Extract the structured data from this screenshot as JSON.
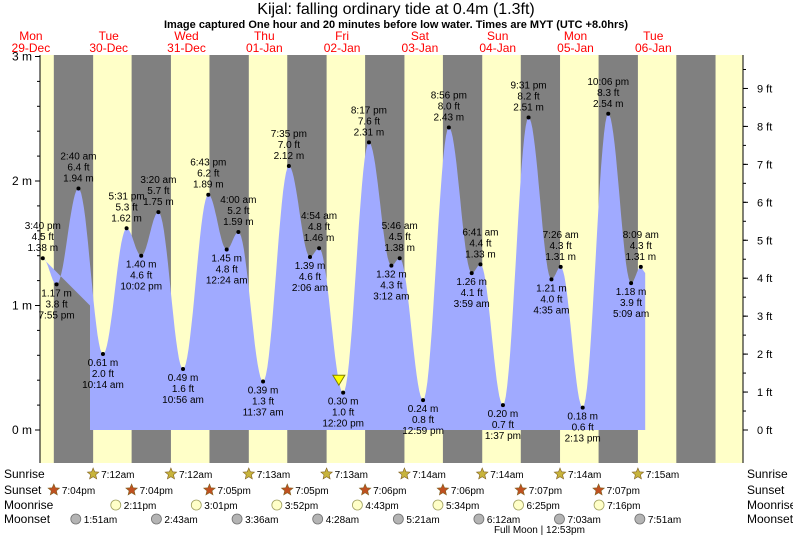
{
  "chart_data": {
    "type": "area",
    "title": "Kijal: falling  ordinary tide at 0.4m (1.3ft)",
    "subtitle": "Image captured One hour and 20 minutes before low water. Times are MYT (UTC +8.0hrs)",
    "ylabel_left_unit": "m",
    "ylabel_right_unit": "ft",
    "ylim_m": [
      -0.2,
      3.0
    ],
    "left_ticks": [
      "0 m",
      "1 m",
      "2 m",
      "3 m"
    ],
    "right_ticks": [
      "0 ft",
      "1 ft",
      "2 ft",
      "3 ft",
      "4 ft",
      "5 ft",
      "6 ft",
      "7 ft",
      "8 ft",
      "9 ft"
    ],
    "days": [
      {
        "name": "Mon",
        "date": "29-Dec"
      },
      {
        "name": "Tue",
        "date": "30-Dec"
      },
      {
        "name": "Wed",
        "date": "31-Dec"
      },
      {
        "name": "Thu",
        "date": "01-Jan"
      },
      {
        "name": "Fri",
        "date": "02-Jan"
      },
      {
        "name": "Sat",
        "date": "03-Jan"
      },
      {
        "name": "Sun",
        "date": "04-Jan"
      },
      {
        "name": "Mon",
        "date": "05-Jan"
      },
      {
        "name": "Tue",
        "date": "06-Jan"
      }
    ],
    "tides": [
      {
        "day": 0,
        "hour": 15.67,
        "m": 1.38,
        "ft": "4.5 ft",
        "m_label": "1.38 m",
        "time": "3:40 pm",
        "type": "high"
      },
      {
        "day": 0,
        "hour": 19.92,
        "m": 1.17,
        "ft": "3.8 ft",
        "m_label": "1.17 m",
        "time": "7:55 pm",
        "type": "low"
      },
      {
        "day": 1,
        "hour": 2.67,
        "m": 1.94,
        "ft": "6.4 ft",
        "m_label": "1.94 m",
        "time": "2:40 am",
        "type": "high"
      },
      {
        "day": 1,
        "hour": 10.23,
        "m": 0.61,
        "ft": "2.0 ft",
        "m_label": "0.61 m",
        "time": "10:14 am",
        "type": "low"
      },
      {
        "day": 1,
        "hour": 17.52,
        "m": 1.62,
        "ft": "5.3 ft",
        "m_label": "1.62 m",
        "time": "5:31 pm",
        "type": "high"
      },
      {
        "day": 1,
        "hour": 22.03,
        "m": 1.4,
        "ft": "4.6 ft",
        "m_label": "1.40 m",
        "time": "10:02 pm",
        "type": "low"
      },
      {
        "day": 2,
        "hour": 3.33,
        "m": 1.75,
        "ft": "5.7 ft",
        "m_label": "1.75 m",
        "time": "3:20 am",
        "type": "high"
      },
      {
        "day": 2,
        "hour": 10.93,
        "m": 0.49,
        "ft": "1.6 ft",
        "m_label": "0.49 m",
        "time": "10:56 am",
        "type": "low"
      },
      {
        "day": 2,
        "hour": 18.72,
        "m": 1.89,
        "ft": "6.2 ft",
        "m_label": "1.89 m",
        "time": "6:43 pm",
        "type": "high"
      },
      {
        "day": 3,
        "hour": 0.4,
        "m": 1.45,
        "ft": "4.8 ft",
        "m_label": "1.45 m",
        "time": "12:24 am",
        "type": "low"
      },
      {
        "day": 3,
        "hour": 4.0,
        "m": 1.59,
        "ft": "5.2 ft",
        "m_label": "1.59 m",
        "time": "4:00 am",
        "type": "high"
      },
      {
        "day": 3,
        "hour": 11.62,
        "m": 0.39,
        "ft": "1.3 ft",
        "m_label": "0.39 m",
        "time": "11:37 am",
        "type": "low"
      },
      {
        "day": 3,
        "hour": 19.58,
        "m": 2.12,
        "ft": "7.0 ft",
        "m_label": "2.12 m",
        "time": "7:35 pm",
        "type": "high"
      },
      {
        "day": 4,
        "hour": 2.1,
        "m": 1.39,
        "ft": "4.6 ft",
        "m_label": "1.39 m",
        "time": "2:06 am",
        "type": "low"
      },
      {
        "day": 4,
        "hour": 4.9,
        "m": 1.46,
        "ft": "4.8 ft",
        "m_label": "1.46 m",
        "time": "4:54 am",
        "type": "high"
      },
      {
        "day": 4,
        "hour": 12.33,
        "m": 0.3,
        "ft": "1.0 ft",
        "m_label": "0.30 m",
        "time": "12:20 pm",
        "type": "low"
      },
      {
        "day": 4,
        "hour": 20.28,
        "m": 2.31,
        "ft": "7.6 ft",
        "m_label": "2.31 m",
        "time": "8:17 pm",
        "type": "high"
      },
      {
        "day": 5,
        "hour": 3.2,
        "m": 1.32,
        "ft": "4.3 ft",
        "m_label": "1.32 m",
        "time": "3:12 am",
        "type": "low"
      },
      {
        "day": 5,
        "hour": 5.77,
        "m": 1.38,
        "ft": "4.5 ft",
        "m_label": "1.38 m",
        "time": "5:46 am",
        "type": "high"
      },
      {
        "day": 5,
        "hour": 12.98,
        "m": 0.24,
        "ft": "0.8 ft",
        "m_label": "0.24 m",
        "time": "12:59 pm",
        "type": "low"
      },
      {
        "day": 5,
        "hour": 20.93,
        "m": 2.43,
        "ft": "8.0 ft",
        "m_label": "2.43 m",
        "time": "8:56 pm",
        "type": "high"
      },
      {
        "day": 6,
        "hour": 3.98,
        "m": 1.26,
        "ft": "4.1 ft",
        "m_label": "1.26 m",
        "time": "3:59 am",
        "type": "low"
      },
      {
        "day": 6,
        "hour": 6.68,
        "m": 1.33,
        "ft": "4.4 ft",
        "m_label": "1.33 m",
        "time": "6:41 am",
        "type": "high"
      },
      {
        "day": 6,
        "hour": 13.62,
        "m": 0.2,
        "ft": "0.7 ft",
        "m_label": "0.20 m",
        "time": "1:37 pm",
        "type": "low"
      },
      {
        "day": 6,
        "hour": 21.52,
        "m": 2.51,
        "ft": "8.2 ft",
        "m_label": "2.51 m",
        "time": "9:31 pm",
        "type": "high"
      },
      {
        "day": 7,
        "hour": 4.58,
        "m": 1.21,
        "ft": "4.0 ft",
        "m_label": "1.21 m",
        "time": "4:35 am",
        "type": "low"
      },
      {
        "day": 7,
        "hour": 7.43,
        "m": 1.31,
        "ft": "4.3 ft",
        "m_label": "1.31 m",
        "time": "7:26 am",
        "type": "high"
      },
      {
        "day": 7,
        "hour": 14.22,
        "m": 0.18,
        "ft": "0.6 ft",
        "m_label": "0.18 m",
        "time": "2:13 pm",
        "type": "low"
      },
      {
        "day": 7,
        "hour": 22.1,
        "m": 2.54,
        "ft": "8.3 ft",
        "m_label": "2.54 m",
        "time": "10:06 pm",
        "type": "high"
      },
      {
        "day": 8,
        "hour": 5.15,
        "m": 1.18,
        "ft": "3.9 ft",
        "m_label": "1.18 m",
        "time": "5:09 am",
        "type": "low"
      },
      {
        "day": 8,
        "hour": 8.15,
        "m": 1.31,
        "ft": "4.3 ft",
        "m_label": "1.31 m",
        "time": "8:09 am",
        "type": "high"
      }
    ],
    "current_marker": {
      "day": 4,
      "hour": 11.0,
      "m": 0.4
    },
    "astro": {
      "row_labels": [
        "Sunrise",
        "Sunset",
        "Moonrise",
        "Moonset"
      ],
      "sunrise": [
        {
          "day": 1,
          "hour": 7.2,
          "label": "7:12am"
        },
        {
          "day": 2,
          "hour": 7.2,
          "label": "7:12am"
        },
        {
          "day": 3,
          "hour": 7.22,
          "label": "7:13am"
        },
        {
          "day": 4,
          "hour": 7.22,
          "label": "7:13am"
        },
        {
          "day": 5,
          "hour": 7.23,
          "label": "7:14am"
        },
        {
          "day": 6,
          "hour": 7.23,
          "label": "7:14am"
        },
        {
          "day": 7,
          "hour": 7.23,
          "label": "7:14am"
        },
        {
          "day": 8,
          "hour": 7.25,
          "label": "7:15am"
        }
      ],
      "sunset": [
        {
          "day": 0,
          "hour": 19.07,
          "label": "7:04pm"
        },
        {
          "day": 1,
          "hour": 19.07,
          "label": "7:04pm"
        },
        {
          "day": 2,
          "hour": 19.08,
          "label": "7:05pm"
        },
        {
          "day": 3,
          "hour": 19.08,
          "label": "7:05pm"
        },
        {
          "day": 4,
          "hour": 19.1,
          "label": "7:06pm"
        },
        {
          "day": 5,
          "hour": 19.1,
          "label": "7:06pm"
        },
        {
          "day": 6,
          "hour": 19.12,
          "label": "7:07pm"
        },
        {
          "day": 7,
          "hour": 19.12,
          "label": "7:07pm"
        }
      ],
      "moonrise": [
        {
          "day": 1,
          "hour": 14.18,
          "label": "2:11pm"
        },
        {
          "day": 2,
          "hour": 15.02,
          "label": "3:01pm"
        },
        {
          "day": 3,
          "hour": 15.87,
          "label": "3:52pm"
        },
        {
          "day": 4,
          "hour": 16.72,
          "label": "4:43pm"
        },
        {
          "day": 5,
          "hour": 17.57,
          "label": "5:34pm"
        },
        {
          "day": 6,
          "hour": 18.42,
          "label": "6:25pm"
        },
        {
          "day": 7,
          "hour": 19.27,
          "label": "7:16pm"
        }
      ],
      "moonset": [
        {
          "day": 1,
          "hour": 1.85,
          "label": "1:51am"
        },
        {
          "day": 2,
          "hour": 2.72,
          "label": "2:43am"
        },
        {
          "day": 3,
          "hour": 3.6,
          "label": "3:36am"
        },
        {
          "day": 4,
          "hour": 4.47,
          "label": "4:28am"
        },
        {
          "day": 5,
          "hour": 5.35,
          "label": "5:21am"
        },
        {
          "day": 6,
          "hour": 6.2,
          "label": "6:12am"
        },
        {
          "day": 7,
          "hour": 7.05,
          "label": "7:03am"
        },
        {
          "day": 8,
          "hour": 7.85,
          "label": "7:51am"
        }
      ],
      "full_moon_label": "Full Moon | 12:53pm",
      "full_moon_day": 7,
      "full_moon_hour": 7.05
    },
    "colors": {
      "day": "#ffffc8",
      "night": "#808080",
      "water": "#a0aaff",
      "day_names": "#ff0000",
      "sun_icon": "#c8b43c",
      "sunset_icon": "#c05020",
      "moonrise_icon": "#ffffc8",
      "moonset_icon": "#b4b4b4"
    }
  }
}
